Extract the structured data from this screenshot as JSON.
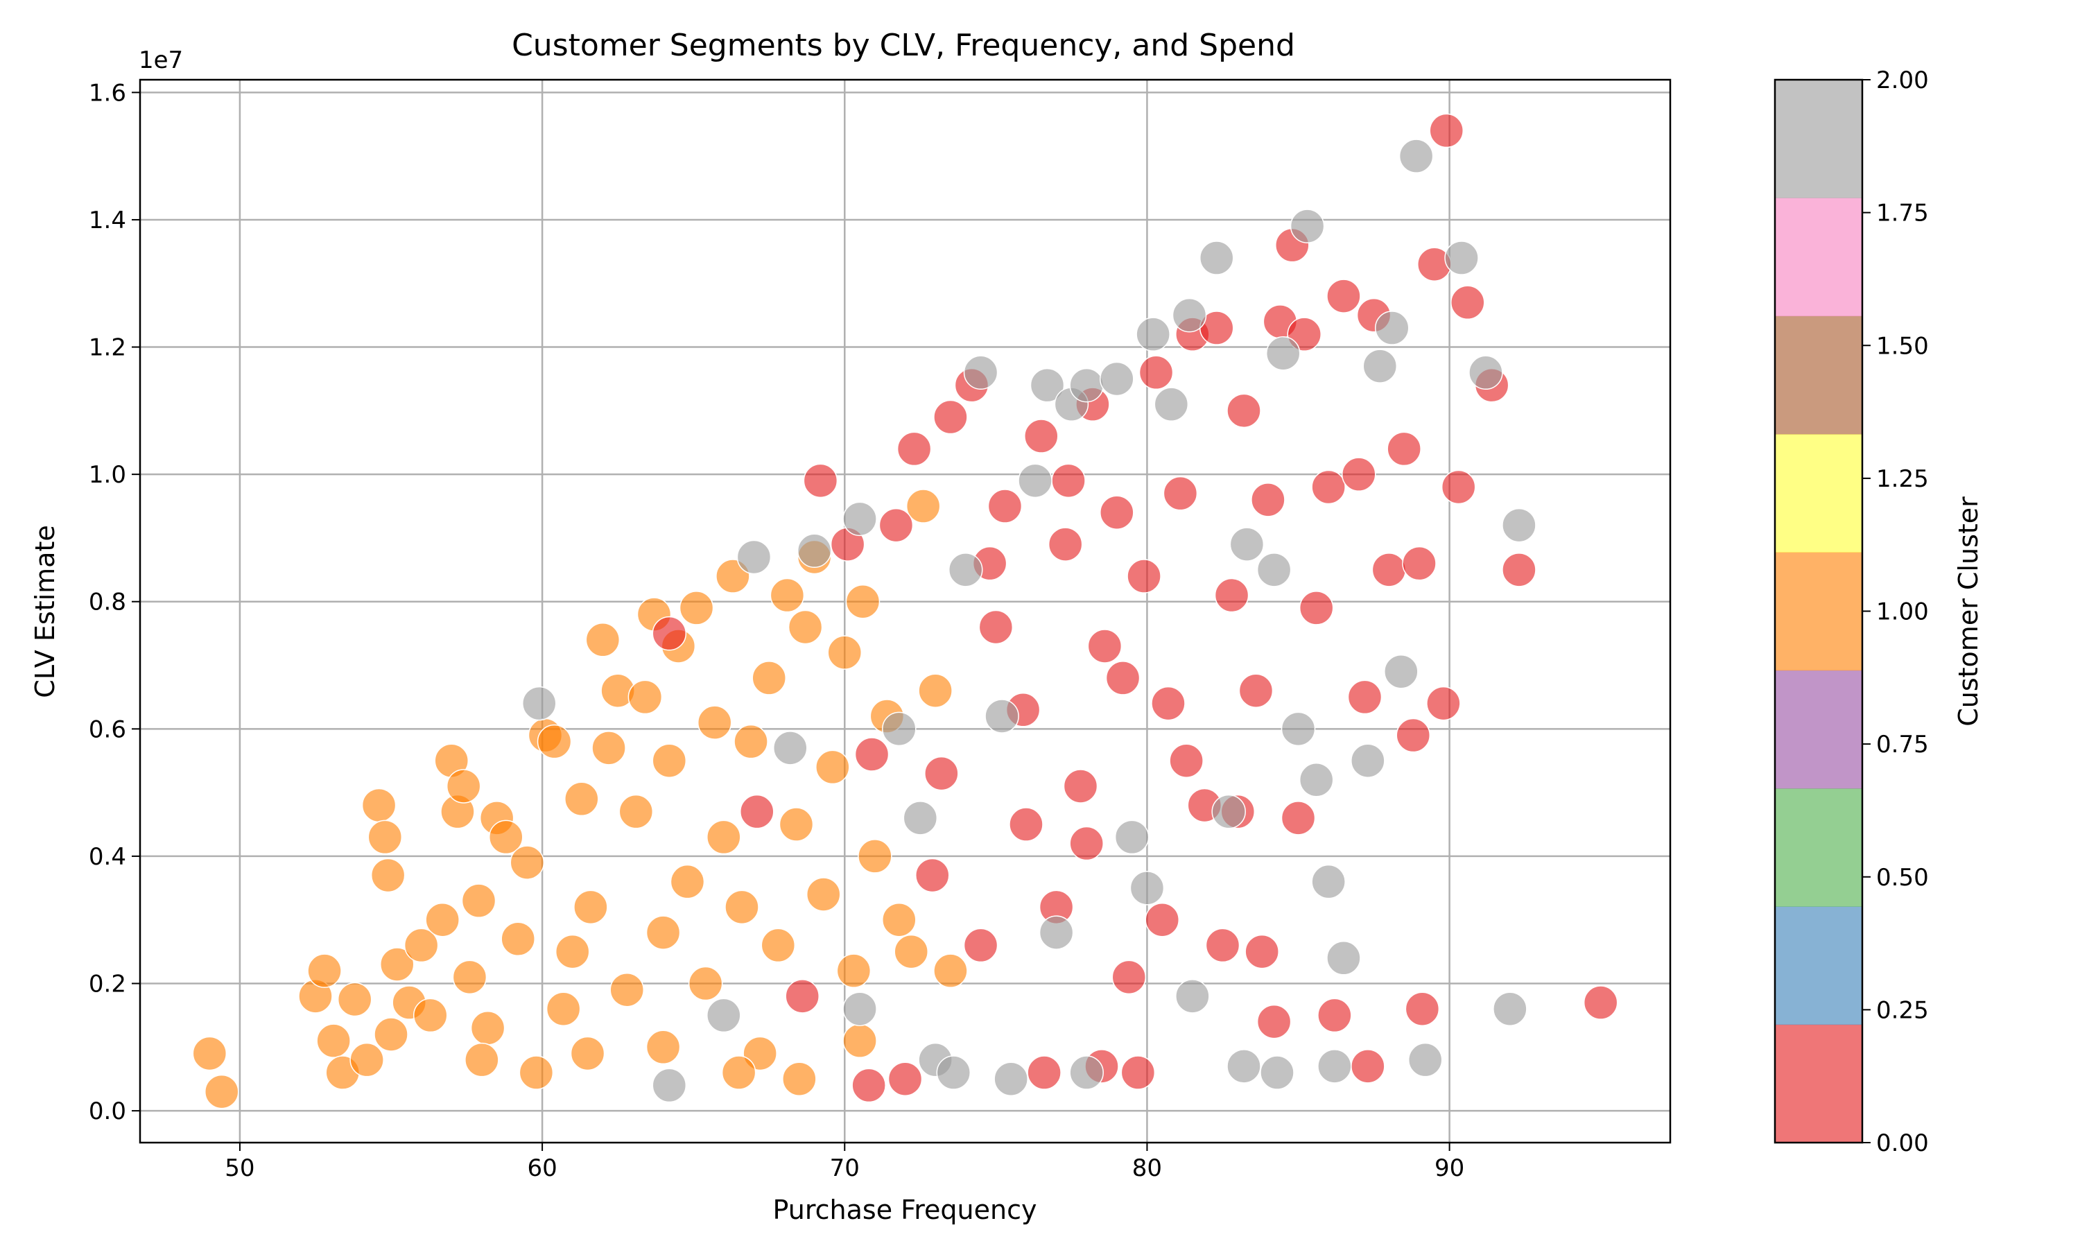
{
  "chart_data": {
    "type": "scatter",
    "title": "Customer Segments by CLV, Frequency, and Spend",
    "xlabel": "Purchase Frequency",
    "ylabel": "CLV Estimate",
    "y_offset_label": "1e7",
    "xlim": [
      46.7,
      97.3
    ],
    "ylim": [
      -500000,
      16200000
    ],
    "x_ticks": [
      50,
      60,
      70,
      80,
      90
    ],
    "x_tick_labels": [
      "50",
      "60",
      "70",
      "80",
      "90"
    ],
    "y_ticks": [
      0,
      2000000,
      4000000,
      6000000,
      8000000,
      10000000,
      12000000,
      14000000,
      16000000
    ],
    "y_tick_labels": [
      "0.0",
      "0.2",
      "0.4",
      "0.6",
      "0.8",
      "1.0",
      "1.2",
      "1.4",
      "1.6"
    ],
    "grid": true,
    "colorbar": {
      "label": "Customer Cluster",
      "range": [
        0,
        2
      ],
      "ticks": [
        0,
        0.25,
        0.5,
        0.75,
        1.0,
        1.25,
        1.5,
        1.75,
        2.0
      ],
      "tick_labels": [
        "0.00",
        "0.25",
        "0.50",
        "0.75",
        "1.00",
        "1.25",
        "1.50",
        "1.75",
        "2.00"
      ],
      "colors": [
        "#e41a1c",
        "#377eb8",
        "#4daf4a",
        "#984ea3",
        "#ff7f00",
        "#ffff33",
        "#a65628",
        "#f781bf",
        "#999999"
      ]
    },
    "series": [
      {
        "cluster": 1,
        "color": "#ff7f00",
        "points": [
          [
            49.0,
            900000
          ],
          [
            49.4,
            300000
          ],
          [
            52.5,
            1800000
          ],
          [
            52.8,
            2200000
          ],
          [
            53.1,
            1100000
          ],
          [
            53.4,
            600000
          ],
          [
            53.8,
            1750000
          ],
          [
            54.2,
            800000
          ],
          [
            54.6,
            4800000
          ],
          [
            54.8,
            4300000
          ],
          [
            54.9,
            3700000
          ],
          [
            55.2,
            2300000
          ],
          [
            55.6,
            1700000
          ],
          [
            56.0,
            2600000
          ],
          [
            56.3,
            1500000
          ],
          [
            56.7,
            3000000
          ],
          [
            57.0,
            5500000
          ],
          [
            57.2,
            4700000
          ],
          [
            57.4,
            5100000
          ],
          [
            57.6,
            2100000
          ],
          [
            57.9,
            3300000
          ],
          [
            58.2,
            1300000
          ],
          [
            58.5,
            4600000
          ],
          [
            58.8,
            4300000
          ],
          [
            59.2,
            2700000
          ],
          [
            59.5,
            3900000
          ],
          [
            59.8,
            600000
          ],
          [
            60.1,
            5900000
          ],
          [
            60.4,
            5800000
          ],
          [
            60.7,
            1600000
          ],
          [
            61.0,
            2500000
          ],
          [
            61.3,
            4900000
          ],
          [
            61.6,
            3200000
          ],
          [
            62.0,
            7400000
          ],
          [
            62.2,
            5700000
          ],
          [
            62.5,
            6600000
          ],
          [
            62.8,
            1900000
          ],
          [
            63.1,
            4700000
          ],
          [
            63.4,
            6500000
          ],
          [
            63.7,
            7800000
          ],
          [
            64.0,
            2800000
          ],
          [
            64.2,
            5500000
          ],
          [
            64.5,
            7300000
          ],
          [
            64.8,
            3600000
          ],
          [
            65.1,
            7900000
          ],
          [
            65.4,
            2000000
          ],
          [
            65.7,
            6100000
          ],
          [
            66.0,
            4300000
          ],
          [
            66.3,
            8400000
          ],
          [
            66.6,
            3200000
          ],
          [
            66.9,
            5800000
          ],
          [
            67.2,
            900000
          ],
          [
            67.5,
            6800000
          ],
          [
            67.8,
            2600000
          ],
          [
            68.1,
            8100000
          ],
          [
            68.4,
            4500000
          ],
          [
            68.7,
            7600000
          ],
          [
            69.0,
            8700000
          ],
          [
            69.3,
            3400000
          ],
          [
            69.6,
            5400000
          ],
          [
            70.0,
            7200000
          ],
          [
            70.3,
            2200000
          ],
          [
            70.6,
            8000000
          ],
          [
            71.0,
            4000000
          ],
          [
            71.4,
            6200000
          ],
          [
            71.8,
            3000000
          ],
          [
            72.2,
            2500000
          ],
          [
            72.6,
            9500000
          ],
          [
            73.0,
            6600000
          ],
          [
            73.5,
            2200000
          ],
          [
            55.0,
            1200000
          ],
          [
            58.0,
            800000
          ],
          [
            61.5,
            900000
          ],
          [
            64.0,
            1000000
          ],
          [
            66.5,
            600000
          ],
          [
            68.5,
            500000
          ],
          [
            70.5,
            1100000
          ]
        ]
      },
      {
        "cluster": 0,
        "color": "#e41a1c",
        "points": [
          [
            64.2,
            7500000
          ],
          [
            67.1,
            4700000
          ],
          [
            68.6,
            1800000
          ],
          [
            69.2,
            9900000
          ],
          [
            70.1,
            8900000
          ],
          [
            70.9,
            5600000
          ],
          [
            71.7,
            9200000
          ],
          [
            72.3,
            10400000
          ],
          [
            72.9,
            3700000
          ],
          [
            73.5,
            10900000
          ],
          [
            74.2,
            11400000
          ],
          [
            74.8,
            8600000
          ],
          [
            75.3,
            9500000
          ],
          [
            75.9,
            6300000
          ],
          [
            76.5,
            10600000
          ],
          [
            77.0,
            3200000
          ],
          [
            77.4,
            9900000
          ],
          [
            77.8,
            5100000
          ],
          [
            78.2,
            11100000
          ],
          [
            78.6,
            7300000
          ],
          [
            79.0,
            9400000
          ],
          [
            79.4,
            2100000
          ],
          [
            79.9,
            8400000
          ],
          [
            80.3,
            11600000
          ],
          [
            80.7,
            6400000
          ],
          [
            81.1,
            9700000
          ],
          [
            81.5,
            12200000
          ],
          [
            81.9,
            4800000
          ],
          [
            82.3,
            12300000
          ],
          [
            82.8,
            8100000
          ],
          [
            83.2,
            11000000
          ],
          [
            83.6,
            6600000
          ],
          [
            84.0,
            9600000
          ],
          [
            84.4,
            12400000
          ],
          [
            84.8,
            13600000
          ],
          [
            85.2,
            12200000
          ],
          [
            85.6,
            7900000
          ],
          [
            86.0,
            9800000
          ],
          [
            86.5,
            12800000
          ],
          [
            87.0,
            10000000
          ],
          [
            87.5,
            12500000
          ],
          [
            88.0,
            8500000
          ],
          [
            88.5,
            10400000
          ],
          [
            89.0,
            8600000
          ],
          [
            89.5,
            13300000
          ],
          [
            89.9,
            15400000
          ],
          [
            90.3,
            9800000
          ],
          [
            90.6,
            12700000
          ],
          [
            91.4,
            11400000
          ],
          [
            92.3,
            8500000
          ],
          [
            89.1,
            1600000
          ],
          [
            95.0,
            1700000
          ],
          [
            87.3,
            700000
          ],
          [
            84.2,
            1400000
          ],
          [
            76.6,
            600000
          ],
          [
            78.5,
            700000
          ],
          [
            79.7,
            600000
          ],
          [
            72.0,
            500000
          ],
          [
            70.8,
            400000
          ],
          [
            74.5,
            2600000
          ],
          [
            76.0,
            4500000
          ],
          [
            78.0,
            4200000
          ],
          [
            80.5,
            3000000
          ],
          [
            82.5,
            2600000
          ],
          [
            83.8,
            2500000
          ],
          [
            86.2,
            1500000
          ],
          [
            73.2,
            5300000
          ],
          [
            75.0,
            7600000
          ],
          [
            77.3,
            8900000
          ],
          [
            79.2,
            6800000
          ],
          [
            81.3,
            5500000
          ],
          [
            83.0,
            4700000
          ],
          [
            85.0,
            4600000
          ],
          [
            87.2,
            6500000
          ],
          [
            88.8,
            5900000
          ],
          [
            89.8,
            6400000
          ]
        ]
      },
      {
        "cluster": 2,
        "color": "#999999",
        "points": [
          [
            59.9,
            6400000
          ],
          [
            64.2,
            400000
          ],
          [
            67.0,
            8700000
          ],
          [
            68.2,
            5700000
          ],
          [
            69.0,
            8800000
          ],
          [
            70.5,
            9300000
          ],
          [
            71.8,
            6000000
          ],
          [
            73.0,
            800000
          ],
          [
            74.5,
            11600000
          ],
          [
            75.2,
            6200000
          ],
          [
            76.7,
            11400000
          ],
          [
            77.5,
            11100000
          ],
          [
            78.0,
            11400000
          ],
          [
            79.0,
            11500000
          ],
          [
            79.5,
            4300000
          ],
          [
            80.2,
            12200000
          ],
          [
            80.8,
            11100000
          ],
          [
            81.4,
            12500000
          ],
          [
            82.3,
            13400000
          ],
          [
            82.7,
            4700000
          ],
          [
            83.3,
            8900000
          ],
          [
            84.2,
            8500000
          ],
          [
            84.5,
            11900000
          ],
          [
            85.0,
            6000000
          ],
          [
            85.3,
            13900000
          ],
          [
            85.6,
            5200000
          ],
          [
            86.0,
            3600000
          ],
          [
            86.5,
            2400000
          ],
          [
            87.3,
            5500000
          ],
          [
            87.7,
            11700000
          ],
          [
            88.1,
            12300000
          ],
          [
            88.4,
            6900000
          ],
          [
            88.9,
            15000000
          ],
          [
            89.2,
            800000
          ],
          [
            90.4,
            13400000
          ],
          [
            91.2,
            11600000
          ],
          [
            92.0,
            1600000
          ],
          [
            92.3,
            9200000
          ],
          [
            83.2,
            700000
          ],
          [
            84.3,
            600000
          ],
          [
            86.2,
            700000
          ],
          [
            81.5,
            1800000
          ],
          [
            78.0,
            600000
          ],
          [
            75.5,
            500000
          ],
          [
            73.6,
            600000
          ],
          [
            77.0,
            2800000
          ],
          [
            80.0,
            3500000
          ],
          [
            76.3,
            9900000
          ],
          [
            74.0,
            8500000
          ],
          [
            72.5,
            4600000
          ],
          [
            70.5,
            1600000
          ],
          [
            66.0,
            1500000
          ]
        ]
      }
    ]
  }
}
